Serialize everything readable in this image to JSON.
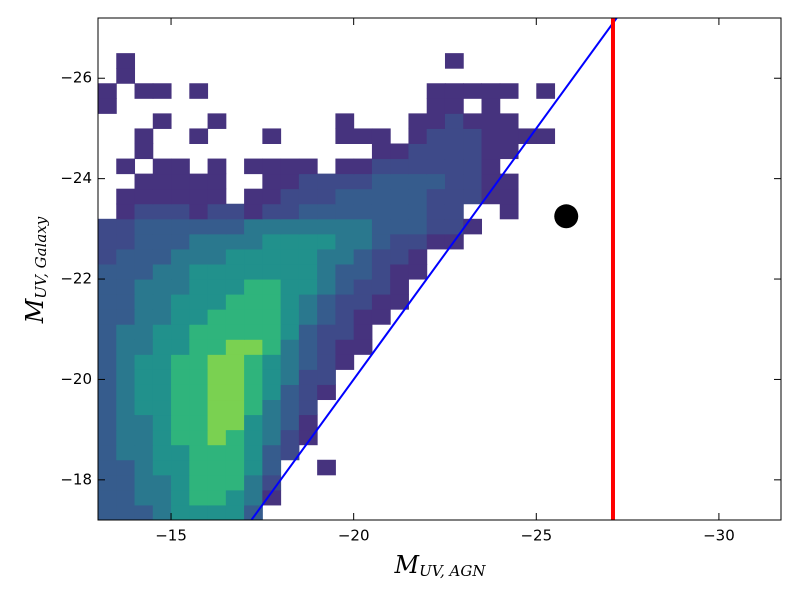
{
  "chart_data": {
    "type": "histogram2d",
    "xlabel": "M",
    "xlabel_sub": "UV, AGN",
    "ylabel": "M",
    "ylabel_sub": "UV, Galaxy",
    "xlim": [
      -13,
      -31.7
    ],
    "ylim": [
      -17.2,
      -27.2
    ],
    "xticks": [
      {
        "value": -15,
        "label": "−15"
      },
      {
        "value": -20,
        "label": "−20"
      },
      {
        "value": -25,
        "label": "−25"
      },
      {
        "value": -30,
        "label": "−30"
      }
    ],
    "yticks": [
      {
        "value": -18,
        "label": "−18"
      },
      {
        "value": -20,
        "label": "−20"
      },
      {
        "value": -22,
        "label": "−22"
      },
      {
        "value": -24,
        "label": "−24"
      },
      {
        "value": -26,
        "label": "−26"
      }
    ],
    "x_edges": [
      -13,
      -13.5,
      -14,
      -14.5,
      -15,
      -15.5,
      -16,
      -16.5,
      -17,
      -17.5,
      -18,
      -18.5,
      -19,
      -19.5,
      -20,
      -20.5,
      -21,
      -21.5,
      -22,
      -22.5,
      -23,
      -23.5,
      -24,
      -24.5,
      -25,
      -25.5,
      -26
    ],
    "y_edges": [
      -17.2,
      -17.5,
      -17.8,
      -18.1,
      -18.4,
      -18.7,
      -19,
      -19.3,
      -19.6,
      -19.9,
      -20.2,
      -20.5,
      -20.8,
      -21.1,
      -21.4,
      -21.7,
      -22,
      -22.3,
      -22.6,
      -22.9,
      -23.2,
      -23.5,
      -23.8,
      -24.1,
      -24.4,
      -24.7,
      -25,
      -25.3,
      -25.6,
      -25.9,
      -26.2,
      -26.5,
      -26.8,
      -27.1
    ],
    "colormap": [
      "#46337e",
      "#3e4a89",
      "#365c8d",
      "#2a788e",
      "#21918c",
      "#2fb47c",
      "#7ad151"
    ],
    "counts": [
      [
        3,
        3,
        3,
        4,
        5,
        5,
        5,
        5,
        3,
        0,
        0,
        0,
        0,
        0,
        0,
        0,
        0,
        0,
        0,
        0,
        0,
        0,
        0,
        0,
        0,
        0
      ],
      [
        3,
        3,
        4,
        4,
        5,
        6,
        6,
        5,
        4,
        1,
        0,
        0,
        0,
        0,
        0,
        0,
        0,
        0,
        0,
        0,
        0,
        0,
        0,
        0,
        0,
        0
      ],
      [
        3,
        3,
        4,
        4,
        5,
        6,
        6,
        6,
        4,
        2,
        0,
        0,
        0,
        0,
        0,
        0,
        0,
        0,
        0,
        0,
        0,
        0,
        0,
        0,
        0,
        0
      ],
      [
        3,
        3,
        4,
        5,
        5,
        6,
        6,
        6,
        5,
        3,
        0,
        0,
        1,
        0,
        0,
        0,
        0,
        0,
        0,
        0,
        0,
        0,
        0,
        0,
        0,
        0
      ],
      [
        3,
        4,
        4,
        5,
        5,
        6,
        6,
        6,
        5,
        3,
        2,
        0,
        0,
        0,
        0,
        0,
        0,
        0,
        0,
        0,
        0,
        0,
        0,
        0,
        0,
        0
      ],
      [
        3,
        4,
        4,
        5,
        6,
        6,
        7,
        6,
        5,
        4,
        2,
        1,
        0,
        0,
        0,
        0,
        0,
        0,
        0,
        0,
        0,
        0,
        0,
        0,
        0,
        0
      ],
      [
        3,
        4,
        4,
        5,
        6,
        6,
        7,
        7,
        5,
        4,
        3,
        1,
        0,
        0,
        0,
        0,
        0,
        0,
        0,
        0,
        0,
        0,
        0,
        0,
        0,
        0
      ],
      [
        3,
        4,
        5,
        5,
        6,
        6,
        7,
        7,
        6,
        4,
        3,
        2,
        0,
        0,
        0,
        0,
        0,
        0,
        0,
        0,
        0,
        0,
        0,
        0,
        0,
        0
      ],
      [
        3,
        4,
        5,
        5,
        6,
        6,
        7,
        7,
        6,
        5,
        3,
        2,
        1,
        0,
        0,
        0,
        0,
        0,
        0,
        0,
        0,
        0,
        0,
        0,
        0,
        0
      ],
      [
        3,
        4,
        5,
        5,
        6,
        6,
        7,
        7,
        6,
        5,
        4,
        2,
        2,
        0,
        0,
        0,
        0,
        0,
        0,
        0,
        0,
        0,
        0,
        0,
        0,
        0
      ],
      [
        3,
        4,
        5,
        5,
        6,
        6,
        7,
        7,
        6,
        5,
        4,
        3,
        2,
        1,
        0,
        0,
        0,
        0,
        0,
        0,
        0,
        0,
        0,
        0,
        0,
        0
      ],
      [
        3,
        4,
        4,
        5,
        5,
        6,
        6,
        7,
        7,
        6,
        4,
        3,
        2,
        1,
        1,
        0,
        0,
        0,
        0,
        0,
        0,
        0,
        0,
        0,
        0,
        0
      ],
      [
        3,
        4,
        4,
        5,
        5,
        6,
        6,
        6,
        6,
        6,
        5,
        3,
        2,
        2,
        1,
        0,
        0,
        0,
        0,
        0,
        0,
        0,
        0,
        0,
        0,
        0
      ],
      [
        3,
        3,
        4,
        4,
        5,
        5,
        6,
        6,
        6,
        6,
        5,
        4,
        3,
        2,
        1,
        1,
        0,
        0,
        0,
        0,
        0,
        0,
        0,
        0,
        0,
        0
      ],
      [
        3,
        3,
        4,
        4,
        5,
        5,
        5,
        6,
        6,
        6,
        5,
        4,
        3,
        2,
        2,
        1,
        1,
        0,
        0,
        0,
        0,
        0,
        0,
        0,
        0,
        0
      ],
      [
        3,
        3,
        4,
        4,
        4,
        5,
        5,
        5,
        6,
        6,
        5,
        5,
        4,
        3,
        2,
        2,
        1,
        0,
        0,
        0,
        0,
        0,
        0,
        0,
        0,
        0
      ],
      [
        3,
        3,
        3,
        4,
        4,
        5,
        5,
        5,
        5,
        5,
        5,
        5,
        4,
        3,
        3,
        2,
        1,
        1,
        0,
        0,
        0,
        0,
        0,
        0,
        0,
        0
      ],
      [
        2,
        3,
        3,
        3,
        4,
        4,
        4,
        5,
        5,
        5,
        5,
        5,
        4,
        4,
        3,
        2,
        2,
        1,
        0,
        0,
        0,
        0,
        0,
        0,
        0,
        0
      ],
      [
        2,
        2,
        3,
        3,
        3,
        4,
        4,
        4,
        4,
        5,
        5,
        5,
        5,
        4,
        4,
        3,
        2,
        2,
        1,
        1,
        0,
        0,
        0,
        0,
        0,
        0
      ],
      [
        2,
        2,
        3,
        3,
        3,
        3,
        3,
        3,
        4,
        4,
        4,
        4,
        4,
        4,
        4,
        3,
        3,
        3,
        2,
        2,
        1,
        0,
        0,
        0,
        0,
        0
      ],
      [
        0,
        1,
        2,
        2,
        2,
        1,
        2,
        2,
        1,
        2,
        2,
        3,
        3,
        3,
        3,
        3,
        3,
        3,
        2,
        2,
        0,
        0,
        1,
        0,
        0,
        0
      ],
      [
        0,
        1,
        1,
        1,
        1,
        1,
        1,
        0,
        1,
        1,
        2,
        2,
        2,
        3,
        3,
        3,
        3,
        3,
        2,
        2,
        2,
        1,
        1,
        0,
        0,
        0
      ],
      [
        0,
        0,
        1,
        1,
        1,
        1,
        1,
        0,
        0,
        1,
        1,
        2,
        2,
        2,
        2,
        3,
        3,
        3,
        3,
        2,
        2,
        1,
        1,
        0,
        0,
        0
      ],
      [
        0,
        1,
        0,
        1,
        1,
        0,
        1,
        0,
        1,
        1,
        1,
        1,
        0,
        1,
        1,
        2,
        2,
        2,
        2,
        2,
        2,
        1,
        0,
        0,
        0,
        0
      ],
      [
        0,
        0,
        1,
        0,
        0,
        0,
        0,
        0,
        0,
        0,
        0,
        0,
        0,
        0,
        0,
        1,
        1,
        2,
        2,
        2,
        2,
        1,
        1,
        0,
        0,
        0
      ],
      [
        0,
        0,
        1,
        0,
        0,
        1,
        0,
        0,
        0,
        1,
        0,
        0,
        0,
        1,
        1,
        1,
        0,
        1,
        2,
        2,
        2,
        1,
        1,
        1,
        1,
        0
      ],
      [
        0,
        0,
        0,
        1,
        0,
        0,
        1,
        0,
        0,
        0,
        0,
        0,
        0,
        1,
        0,
        0,
        0,
        1,
        1,
        2,
        1,
        1,
        1,
        0,
        0,
        0
      ],
      [
        1,
        0,
        0,
        0,
        0,
        0,
        0,
        0,
        0,
        0,
        0,
        0,
        0,
        0,
        0,
        0,
        0,
        0,
        1,
        1,
        0,
        1,
        0,
        0,
        0,
        0
      ],
      [
        1,
        0,
        1,
        1,
        0,
        1,
        0,
        0,
        0,
        0,
        0,
        0,
        0,
        0,
        0,
        0,
        0,
        0,
        1,
        1,
        1,
        1,
        1,
        0,
        1,
        0
      ],
      [
        0,
        1,
        0,
        0,
        0,
        0,
        0,
        0,
        0,
        0,
        0,
        0,
        0,
        0,
        0,
        0,
        0,
        0,
        0,
        0,
        0,
        0,
        0,
        0,
        0,
        0
      ],
      [
        0,
        1,
        0,
        0,
        0,
        0,
        0,
        0,
        0,
        0,
        0,
        0,
        0,
        0,
        0,
        0,
        0,
        0,
        0,
        1,
        0,
        0,
        0,
        0,
        0,
        0
      ],
      [
        0,
        0,
        0,
        0,
        0,
        0,
        0,
        0,
        0,
        0,
        0,
        0,
        0,
        0,
        0,
        0,
        0,
        0,
        0,
        0,
        0,
        0,
        0,
        0,
        0,
        0
      ],
      [
        0,
        0,
        0,
        0,
        0,
        0,
        0,
        0,
        0,
        0,
        0,
        0,
        0,
        0,
        0,
        0,
        0,
        0,
        0,
        0,
        0,
        0,
        0,
        0,
        0,
        0
      ]
    ],
    "diagonal_line": {
      "x": [
        -17.2,
        -27.2
      ],
      "y": [
        -17.2,
        -27.2
      ],
      "color": "#0000ff"
    },
    "vertical_line": {
      "x": -27.1,
      "color": "#ff0000"
    },
    "point": {
      "x": -25.82,
      "y": -23.25,
      "color": "#000000"
    }
  }
}
